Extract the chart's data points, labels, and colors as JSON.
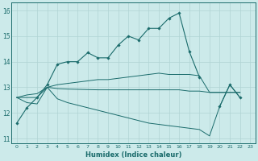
{
  "xlabel": "Humidex (Indice chaleur)",
  "bg_color": "#cceaea",
  "line_color": "#1a6b6b",
  "grid_color": "#b0d4d4",
  "xlim": [
    -0.5,
    23.5
  ],
  "ylim": [
    10.8,
    16.3
  ],
  "yticks": [
    11,
    12,
    13,
    14,
    15,
    16
  ],
  "xticks": [
    0,
    1,
    2,
    3,
    4,
    5,
    6,
    7,
    8,
    9,
    10,
    11,
    12,
    13,
    14,
    15,
    16,
    17,
    18,
    19,
    20,
    21,
    22,
    23
  ],
  "line1": [
    11.6,
    12.2,
    12.6,
    13.1,
    13.9,
    14.0,
    14.0,
    14.35,
    14.15,
    14.15,
    14.65,
    15.0,
    14.85,
    15.3,
    15.3,
    15.7,
    15.9,
    14.4,
    13.4,
    null,
    null,
    null,
    null,
    null
  ],
  "line1b": [
    null,
    null,
    null,
    null,
    null,
    null,
    null,
    null,
    null,
    null,
    null,
    null,
    null,
    null,
    null,
    null,
    null,
    null,
    null,
    null,
    12.25,
    13.1,
    12.6,
    null
  ],
  "line2": [
    12.6,
    12.6,
    12.6,
    13.0,
    13.1,
    13.15,
    13.2,
    13.25,
    13.3,
    13.3,
    13.35,
    13.4,
    13.45,
    13.5,
    13.55,
    13.5,
    13.5,
    13.5,
    13.45,
    12.8,
    12.8,
    12.8,
    12.8,
    null
  ],
  "line3": [
    12.6,
    12.7,
    12.75,
    13.0,
    12.95,
    12.93,
    12.92,
    12.91,
    12.9,
    12.9,
    12.9,
    12.9,
    12.9,
    12.9,
    12.9,
    12.9,
    12.9,
    12.85,
    12.85,
    12.8,
    12.8,
    12.8,
    12.8,
    null
  ],
  "line4": [
    12.6,
    12.4,
    12.35,
    13.0,
    12.55,
    12.4,
    12.3,
    12.2,
    12.1,
    12.0,
    11.9,
    11.8,
    11.7,
    11.6,
    11.55,
    11.5,
    11.45,
    11.4,
    11.35,
    11.1,
    12.25,
    13.1,
    12.6,
    null
  ]
}
